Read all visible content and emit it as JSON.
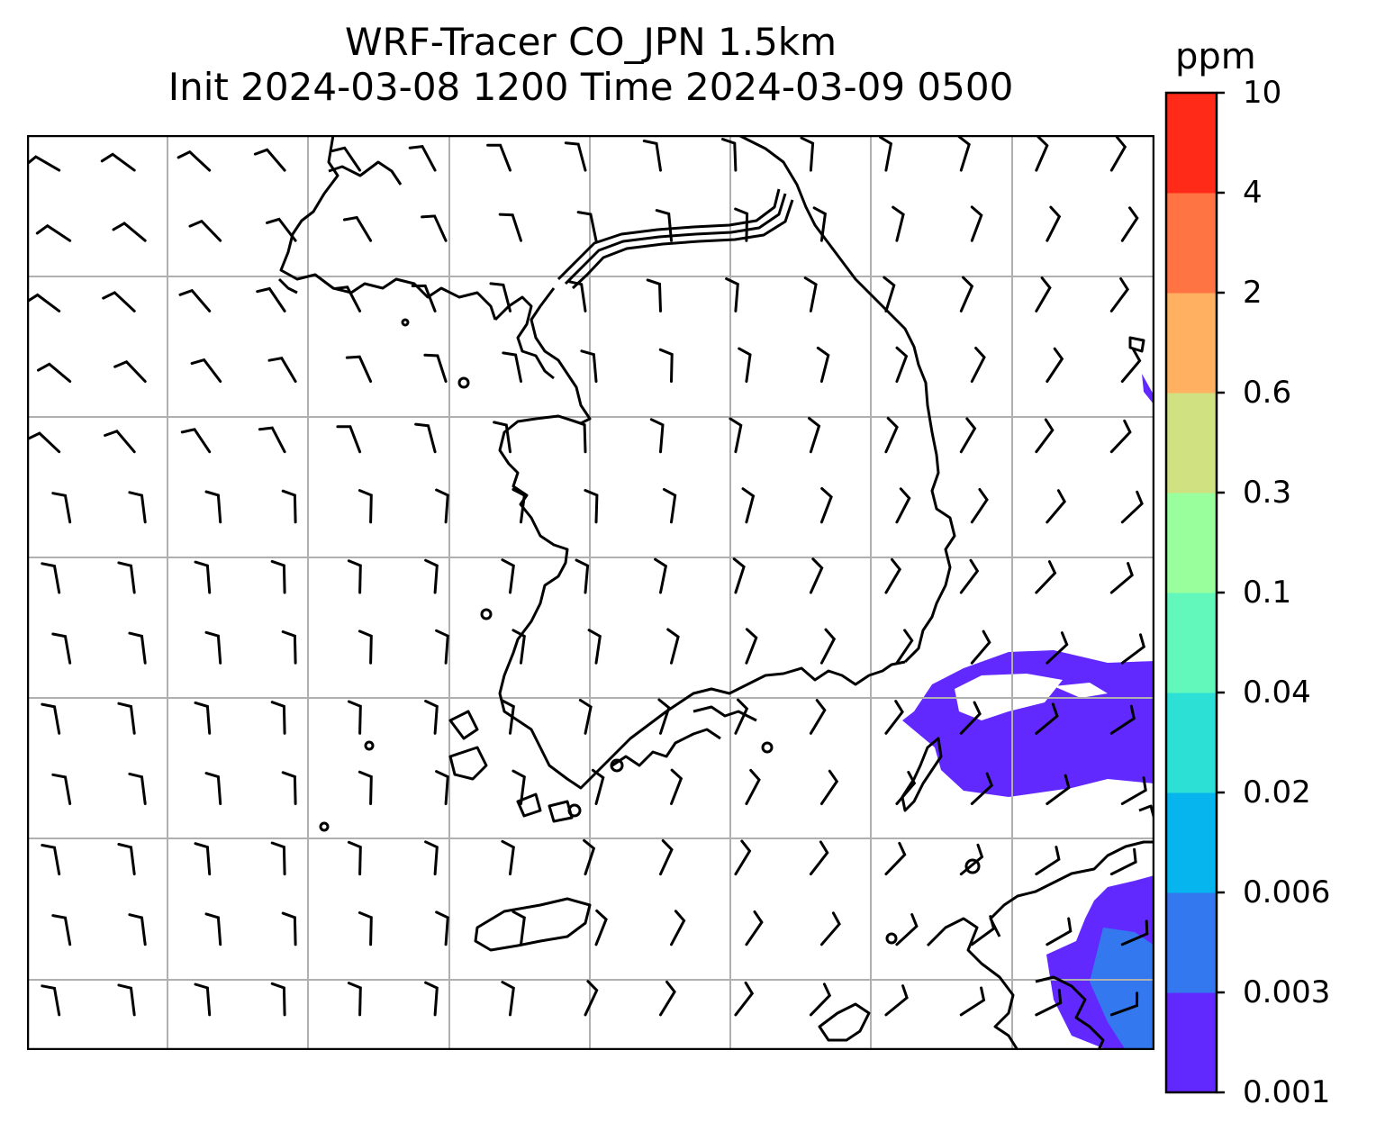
{
  "title": {
    "line1": "WRF-Tracer CO_JPN 1.5km",
    "line2": "Init 2024-03-08 1200 Time 2024-03-09 0500"
  },
  "colorbar": {
    "unit": "ppm",
    "levels": [
      "0.001",
      "0.003",
      "0.006",
      "0.02",
      "0.04",
      "0.1",
      "0.3",
      "0.6",
      "2",
      "4",
      "10"
    ],
    "colors": [
      "#6229ff",
      "#3478f0",
      "#06b5ee",
      "#2de0d6",
      "#62f8bb",
      "#99ff9d",
      "#d0e181",
      "#ffb161",
      "#ff7442",
      "#ff2a18"
    ]
  },
  "map": {
    "gridline_color": "#b0b0b0",
    "coastline_color": "#000000",
    "wind_barbs": "black barbs over Korean Peninsula and surrounding seas"
  }
}
